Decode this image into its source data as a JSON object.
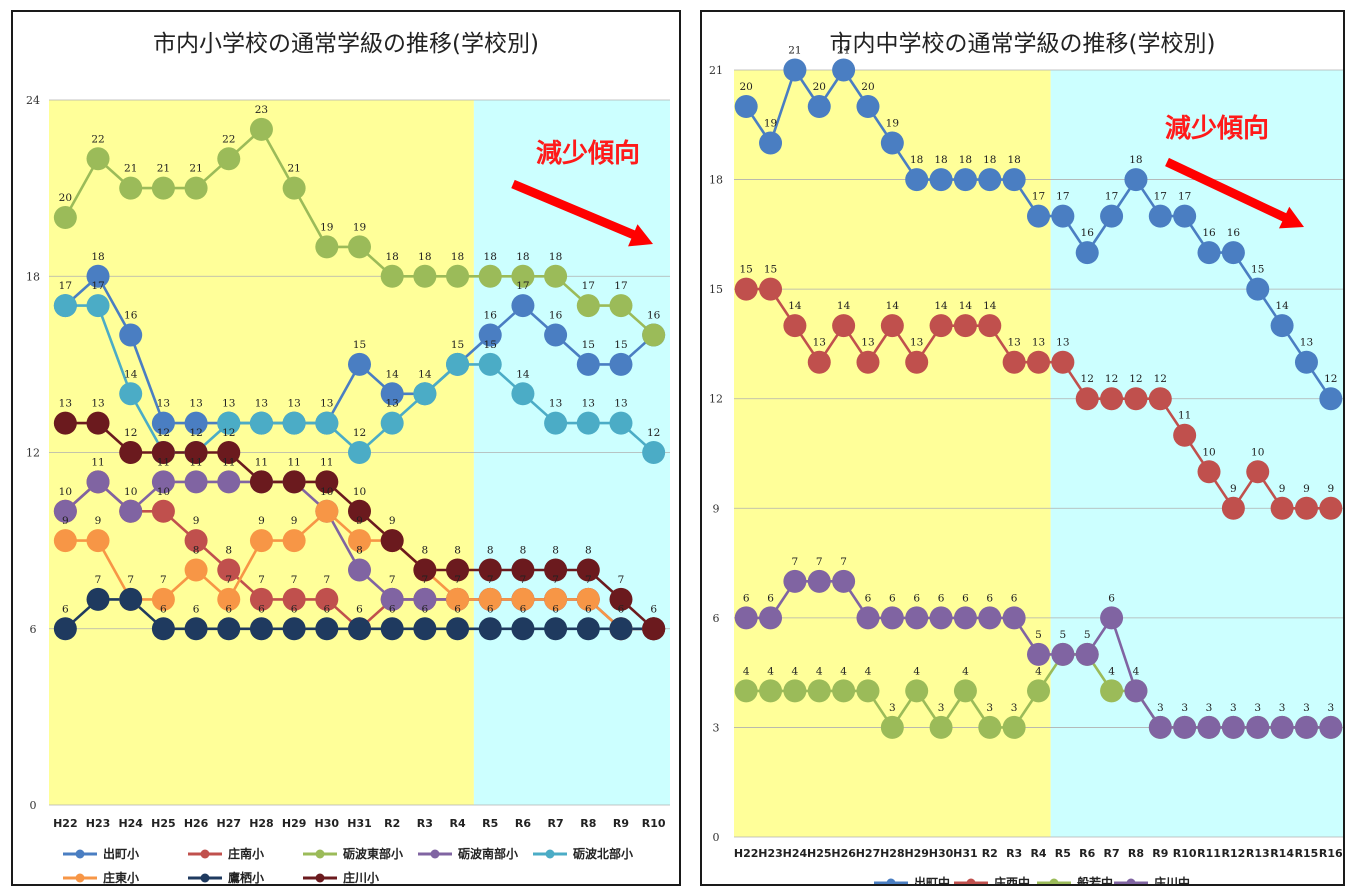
{
  "chart_data": [
    {
      "type": "line",
      "title": "市内小学校の通常学級の推移(学校別)",
      "annotation": "減少傾向",
      "categories": [
        "H22",
        "H23",
        "H24",
        "H25",
        "H26",
        "H27",
        "H28",
        "H29",
        "H30",
        "H31",
        "R2",
        "R3",
        "R4",
        "R5",
        "R6",
        "R7",
        "R8",
        "R9",
        "R10"
      ],
      "ylim": [
        0,
        24
      ],
      "yticks": [
        0,
        6,
        12,
        18,
        24
      ],
      "shaded_regions": [
        {
          "from": "H22",
          "to": "R4",
          "color": "#ffff99"
        },
        {
          "from": "R5",
          "to": "R10",
          "color": "#ccffff"
        }
      ],
      "legend_position": "bottom",
      "series": [
        {
          "name": "出町小",
          "color": "#4a7ec2",
          "values": [
            17,
            18,
            16,
            13,
            13,
            13,
            13,
            13,
            13,
            15,
            14,
            14,
            15,
            16,
            17,
            16,
            15,
            15,
            16
          ]
        },
        {
          "name": "庄南小",
          "color": "#c0504d",
          "values": [
            10,
            11,
            10,
            10,
            9,
            8,
            7,
            7,
            7,
            6,
            7,
            7,
            7,
            7,
            7,
            7,
            7,
            6,
            6
          ]
        },
        {
          "name": "砺波東部小",
          "color": "#9bbb59",
          "values": [
            20,
            22,
            21,
            21,
            21,
            22,
            23,
            21,
            19,
            19,
            18,
            18,
            18,
            18,
            18,
            18,
            17,
            17,
            16
          ]
        },
        {
          "name": "砺波南部小",
          "color": "#8064a2",
          "values": [
            10,
            11,
            10,
            11,
            11,
            11,
            11,
            11,
            10,
            8,
            7,
            7,
            7,
            7,
            7,
            7,
            7,
            6,
            6
          ]
        },
        {
          "name": "砺波北部小",
          "color": "#4bacc6",
          "values": [
            17,
            17,
            14,
            12,
            12,
            13,
            13,
            13,
            13,
            12,
            13,
            14,
            15,
            15,
            14,
            13,
            13,
            13,
            12
          ]
        },
        {
          "name": "庄東小",
          "color": "#f79646",
          "values": [
            9,
            9,
            7,
            7,
            8,
            7,
            9,
            9,
            10,
            9,
            9,
            8,
            7,
            7,
            7,
            7,
            7,
            6,
            6
          ]
        },
        {
          "name": "鷹栖小",
          "color": "#1f3a5f",
          "values": [
            6,
            7,
            7,
            6,
            6,
            6,
            6,
            6,
            6,
            6,
            6,
            6,
            6,
            6,
            6,
            6,
            6,
            6,
            6
          ]
        },
        {
          "name": "庄川小",
          "color": "#6b1a1e",
          "values": [
            13,
            13,
            12,
            12,
            12,
            12,
            11,
            11,
            11,
            10,
            9,
            8,
            8,
            8,
            8,
            8,
            8,
            7,
            6
          ]
        }
      ]
    },
    {
      "type": "line",
      "title": "市内中学校の通常学級の推移(学校別)",
      "annotation": "減少傾向",
      "categories": [
        "H22",
        "H23",
        "H24",
        "H25",
        "H26",
        "H27",
        "H28",
        "H29",
        "H30",
        "H31",
        "R2",
        "R3",
        "R4",
        "R5",
        "R6",
        "R7",
        "R8",
        "R9",
        "R10",
        "R11",
        "R12",
        "R13",
        "R14",
        "R15",
        "R16"
      ],
      "ylim": [
        0,
        21
      ],
      "yticks": [
        0,
        3,
        6,
        9,
        12,
        15,
        18,
        21
      ],
      "shaded_regions": [
        {
          "from": "H22",
          "to": "R4",
          "color": "#ffff99"
        },
        {
          "from": "R5",
          "to": "R16",
          "color": "#ccffff"
        }
      ],
      "legend_position": "bottom",
      "series": [
        {
          "name": "出町中",
          "color": "#4a7ec2",
          "values": [
            20,
            19,
            21,
            20,
            21,
            20,
            19,
            18,
            18,
            18,
            18,
            18,
            17,
            17,
            16,
            17,
            18,
            17,
            17,
            16,
            16,
            15,
            14,
            13,
            12
          ]
        },
        {
          "name": "庄西中",
          "color": "#c0504d",
          "values": [
            15,
            15,
            14,
            13,
            14,
            13,
            14,
            13,
            14,
            14,
            14,
            13,
            13,
            13,
            12,
            12,
            12,
            12,
            11,
            10,
            9,
            10,
            9,
            9,
            9
          ]
        },
        {
          "name": "般若中",
          "color": "#9bbb59",
          "values": [
            4,
            4,
            4,
            4,
            4,
            4,
            3,
            4,
            3,
            4,
            3,
            3,
            4,
            5,
            5,
            4,
            4,
            3,
            3,
            3,
            3,
            3,
            3,
            3,
            3
          ]
        },
        {
          "name": "庄川中",
          "color": "#8064a2",
          "values": [
            6,
            6,
            7,
            7,
            7,
            6,
            6,
            6,
            6,
            6,
            6,
            6,
            5,
            5,
            5,
            6,
            4,
            3,
            3,
            3,
            3,
            3,
            3,
            3,
            3
          ]
        }
      ]
    }
  ]
}
